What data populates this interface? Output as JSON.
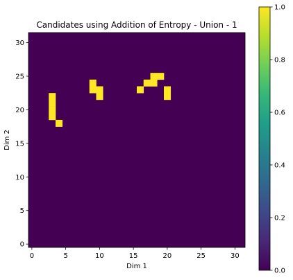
{
  "chart_data": {
    "type": "heatmap",
    "title": "Candidates using Addition of Entropy - Union - 1",
    "xlabel": "Dim 1",
    "ylabel": "Dim 2",
    "grid_size": [
      32,
      32
    ],
    "xlim": [
      -0.5,
      31.5
    ],
    "ylim": [
      31.5,
      -0.5
    ],
    "xticks": [
      0,
      5,
      10,
      15,
      20,
      25,
      30
    ],
    "yticks": [
      0,
      5,
      10,
      15,
      20,
      25,
      30
    ],
    "value_range": [
      0,
      1
    ],
    "background_value": 0,
    "active_value": 1,
    "active_cells": [
      [
        6,
        18
      ],
      [
        6,
        19
      ],
      [
        7,
        9
      ],
      [
        7,
        17
      ],
      [
        7,
        18
      ],
      [
        8,
        9
      ],
      [
        8,
        10
      ],
      [
        8,
        16
      ],
      [
        8,
        20
      ],
      [
        9,
        3
      ],
      [
        9,
        10
      ],
      [
        9,
        20
      ],
      [
        10,
        3
      ],
      [
        11,
        3
      ],
      [
        12,
        3
      ],
      [
        13,
        4
      ]
    ],
    "colormap": {
      "low": "#440154",
      "high": "#fde725"
    },
    "colorbar": {
      "ticks": [
        "0.0",
        "0.2",
        "0.4",
        "0.6",
        "0.8",
        "1.0"
      ],
      "stops": [
        "#440154",
        "#482878",
        "#3e4989",
        "#31688e",
        "#26828e",
        "#1f9e89",
        "#35b779",
        "#6ece58",
        "#b5de2b",
        "#fde725"
      ]
    }
  }
}
